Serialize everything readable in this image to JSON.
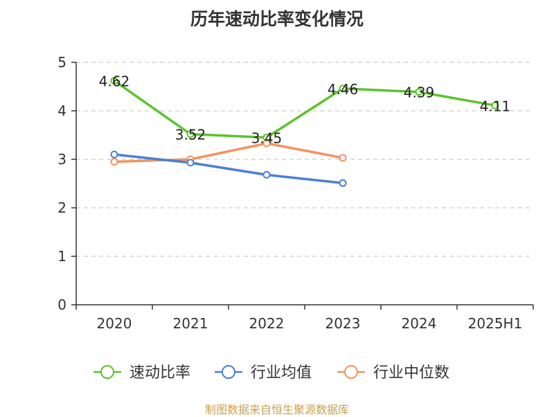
{
  "chart_data": {
    "type": "line",
    "title": "历年速动比率变化情况",
    "categories": [
      "2020",
      "2021",
      "2022",
      "2023",
      "2024",
      "2025H1"
    ],
    "ylim": [
      0,
      5
    ],
    "yticks": [
      0,
      1,
      2,
      3,
      4,
      5
    ],
    "grid": true,
    "legend_position": "bottom",
    "series": [
      {
        "name": "速动比率",
        "color": "#5bc42a",
        "values": [
          4.62,
          3.52,
          3.45,
          4.46,
          4.39,
          4.11
        ],
        "labels": [
          "4.62",
          "3.52",
          "3.45",
          "4.46",
          "4.39",
          "4.11"
        ]
      },
      {
        "name": "行业均值",
        "color": "#4a7fd6",
        "values": [
          3.1,
          2.93,
          2.68,
          2.51,
          null,
          null
        ]
      },
      {
        "name": "行业中位数",
        "color": "#f5925e",
        "values": [
          2.95,
          3.0,
          3.33,
          3.03,
          null,
          null
        ]
      }
    ]
  },
  "footer": "制图数据来自恒生聚源数据库"
}
